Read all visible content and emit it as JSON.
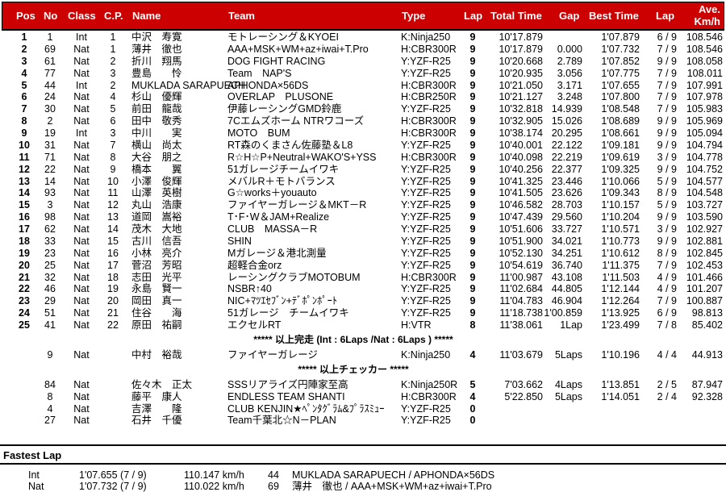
{
  "header": {
    "pos": "Pos",
    "no": "No",
    "class": "Class",
    "cp": "C.P.",
    "name": "Name",
    "team": "Team",
    "type": "Type",
    "lap": "Lap",
    "total": "Total Time",
    "gap": "Gap",
    "best": "Best Time",
    "bestlap": "Lap",
    "ave1": "Ave.",
    "ave2": "Km/h"
  },
  "colors": {
    "header_bg": "#cc0000",
    "header_text": "#ffffff"
  },
  "results": [
    {
      "pos": "1",
      "no": "1",
      "class": "Int",
      "cp": "1",
      "name": "中沢　寿寛",
      "team": "モトレーシング＆KYOEI",
      "type": "K:Ninja250",
      "lap": "9",
      "total": "10'17.879",
      "gap": "",
      "best": "1'07.879",
      "bestlap": "6 / 9",
      "ave": "108.546"
    },
    {
      "pos": "2",
      "no": "69",
      "class": "Nat",
      "cp": "1",
      "name": "薄井　徹也",
      "team": "AAA+MSK+WM+az+iwai+T.Pro",
      "type": "H:CBR300R",
      "lap": "9",
      "total": "10'17.879",
      "gap": "0.000",
      "best": "1'07.732",
      "bestlap": "7 / 9",
      "ave": "108.546"
    },
    {
      "pos": "3",
      "no": "61",
      "class": "Nat",
      "cp": "2",
      "name": "折川　翔馬",
      "team": "DOG FIGHT RACING",
      "type": "Y:YZF-R25",
      "lap": "9",
      "total": "10'20.668",
      "gap": "2.789",
      "best": "1'07.852",
      "bestlap": "9 / 9",
      "ave": "108.058"
    },
    {
      "pos": "4",
      "no": "77",
      "class": "Nat",
      "cp": "3",
      "name": "豊島　　怜",
      "team": "Team　NAP'S",
      "type": "Y:YZF-R25",
      "lap": "9",
      "total": "10'20.935",
      "gap": "3.056",
      "best": "1'07.775",
      "bestlap": "7 / 9",
      "ave": "108.011"
    },
    {
      "pos": "5",
      "no": "44",
      "class": "Int",
      "cp": "2",
      "name": "MUKLADA SARAPUECH",
      "team": "APHONDA×56DS",
      "type": "H:CBR300R",
      "lap": "9",
      "total": "10'21.050",
      "gap": "3.171",
      "best": "1'07.655",
      "bestlap": "7 / 9",
      "ave": "107.991"
    },
    {
      "pos": "6",
      "no": "24",
      "class": "Nat",
      "cp": "4",
      "name": "杉山　優輝",
      "team": "OVERLAP　PLUSONE",
      "type": "H:CBR250R",
      "lap": "9",
      "total": "10'21.127",
      "gap": "3.248",
      "best": "1'07.800",
      "bestlap": "7 / 9",
      "ave": "107.978"
    },
    {
      "pos": "7",
      "no": "30",
      "class": "Nat",
      "cp": "5",
      "name": "前田　龍哉",
      "team": "伊藤レーシングGMD鈴鹿",
      "type": "Y:YZF-R25",
      "lap": "9",
      "total": "10'32.818",
      "gap": "14.939",
      "best": "1'08.548",
      "bestlap": "7 / 9",
      "ave": "105.983"
    },
    {
      "pos": "8",
      "no": "2",
      "class": "Nat",
      "cp": "6",
      "name": "田中　敬秀",
      "team": "7Cエムズホーム NTRワコーズ",
      "type": "H:CBR300R",
      "lap": "9",
      "total": "10'32.905",
      "gap": "15.026",
      "best": "1'08.689",
      "bestlap": "9 / 9",
      "ave": "105.969"
    },
    {
      "pos": "9",
      "no": "19",
      "class": "Int",
      "cp": "3",
      "name": "中川　　実",
      "team": "MOTO　BUM",
      "type": "H:CBR300R",
      "lap": "9",
      "total": "10'38.174",
      "gap": "20.295",
      "best": "1'08.661",
      "bestlap": "9 / 9",
      "ave": "105.094"
    },
    {
      "pos": "10",
      "no": "31",
      "class": "Nat",
      "cp": "7",
      "name": "横山　尚太",
      "team": "RT森のくまさん佐藤塾＆L8",
      "type": "Y:YZF-R25",
      "lap": "9",
      "total": "10'40.001",
      "gap": "22.122",
      "best": "1'09.181",
      "bestlap": "9 / 9",
      "ave": "104.794"
    },
    {
      "pos": "11",
      "no": "71",
      "class": "Nat",
      "cp": "8",
      "name": "大谷　朋之",
      "team": "R☆H☆P+Neutral+WAKO'S+YSS",
      "type": "H:CBR300R",
      "lap": "9",
      "total": "10'40.098",
      "gap": "22.219",
      "best": "1'09.619",
      "bestlap": "3 / 9",
      "ave": "104.778"
    },
    {
      "pos": "12",
      "no": "22",
      "class": "Nat",
      "cp": "9",
      "name": "橋本　　翼",
      "team": "51ガレージチームイワキ",
      "type": "Y:YZF-R25",
      "lap": "9",
      "total": "10'40.256",
      "gap": "22.377",
      "best": "1'09.325",
      "bestlap": "9 / 9",
      "ave": "104.752"
    },
    {
      "pos": "13",
      "no": "14",
      "class": "Nat",
      "cp": "10",
      "name": "小澤　俊輝",
      "team": "メバルR＋モトバランス",
      "type": "Y:YZF-R25",
      "lap": "9",
      "total": "10'41.325",
      "gap": "23.446",
      "best": "1'10.066",
      "bestlap": "5 / 9",
      "ave": "104.577"
    },
    {
      "pos": "14",
      "no": "93",
      "class": "Nat",
      "cp": "11",
      "name": "山澤　英樹",
      "team": "G☆works＋youauto",
      "type": "Y:YZF-R25",
      "lap": "9",
      "total": "10'41.505",
      "gap": "23.626",
      "best": "1'09.343",
      "bestlap": "8 / 9",
      "ave": "104.548"
    },
    {
      "pos": "15",
      "no": "3",
      "class": "Nat",
      "cp": "12",
      "name": "丸山　浩康",
      "team": "ファイヤーガレージ＆MKT－R",
      "type": "Y:YZF-R25",
      "lap": "9",
      "total": "10'46.582",
      "gap": "28.703",
      "best": "1'10.157",
      "bestlap": "5 / 9",
      "ave": "103.727"
    },
    {
      "pos": "16",
      "no": "98",
      "class": "Nat",
      "cp": "13",
      "name": "道岡　嵩裕",
      "team": "T･F･W＆JAM+Realize",
      "type": "Y:YZF-R25",
      "lap": "9",
      "total": "10'47.439",
      "gap": "29.560",
      "best": "1'10.204",
      "bestlap": "9 / 9",
      "ave": "103.590"
    },
    {
      "pos": "17",
      "no": "62",
      "class": "Nat",
      "cp": "14",
      "name": "茂木　大地",
      "team": "CLUB　MASSA－R",
      "type": "Y:YZF-R25",
      "lap": "9",
      "total": "10'51.606",
      "gap": "33.727",
      "best": "1'10.571",
      "bestlap": "3 / 9",
      "ave": "102.927"
    },
    {
      "pos": "18",
      "no": "33",
      "class": "Nat",
      "cp": "15",
      "name": "古川　信吾",
      "team": "SHIN",
      "type": "Y:YZF-R25",
      "lap": "9",
      "total": "10'51.900",
      "gap": "34.021",
      "best": "1'10.773",
      "bestlap": "9 / 9",
      "ave": "102.881"
    },
    {
      "pos": "19",
      "no": "23",
      "class": "Nat",
      "cp": "16",
      "name": "小林　亮介",
      "team": "Mガレージ＆港北測量",
      "type": "Y:YZF-R25",
      "lap": "9",
      "total": "10'52.130",
      "gap": "34.251",
      "best": "1'10.612",
      "bestlap": "8 / 9",
      "ave": "102.845"
    },
    {
      "pos": "20",
      "no": "25",
      "class": "Nat",
      "cp": "17",
      "name": "菅沼　芳昭",
      "team": "超軽合金orz",
      "type": "Y:YZF-R25",
      "lap": "9",
      "total": "10'54.619",
      "gap": "36.740",
      "best": "1'11.375",
      "bestlap": "7 / 9",
      "ave": "102.453"
    },
    {
      "pos": "21",
      "no": "32",
      "class": "Nat",
      "cp": "18",
      "name": "志田　光平",
      "team": "レーシングクラブMOTOBUM",
      "type": "H:CBR300R",
      "lap": "9",
      "total": "11'00.987",
      "gap": "43.108",
      "best": "1'11.503",
      "bestlap": "4 / 9",
      "ave": "101.466"
    },
    {
      "pos": "22",
      "no": "46",
      "class": "Nat",
      "cp": "19",
      "name": "永島　賢一",
      "team": "NSBR↑40",
      "type": "Y:YZF-R25",
      "lap": "9",
      "total": "11'02.684",
      "gap": "44.805",
      "best": "1'12.144",
      "bestlap": "4 / 9",
      "ave": "101.207"
    },
    {
      "pos": "23",
      "no": "29",
      "class": "Nat",
      "cp": "20",
      "name": "岡田　真一",
      "team": "NIC+ﾏﾂｴｾﾌﾞﾝ+ﾃﾞﾎﾟﾝﾎﾟｰﾄ",
      "type": "Y:YZF-R25",
      "lap": "9",
      "total": "11'04.783",
      "gap": "46.904",
      "best": "1'12.264",
      "bestlap": "7 / 9",
      "ave": "100.887"
    },
    {
      "pos": "24",
      "no": "51",
      "class": "Nat",
      "cp": "21",
      "name": "住谷　　海",
      "team": "51ガレージ　チームイワキ",
      "type": "Y:YZF-R25",
      "lap": "9",
      "total": "11'18.738",
      "gap": "1'00.859",
      "best": "1'13.925",
      "bestlap": "6 / 9",
      "ave": "98.813"
    },
    {
      "pos": "25",
      "no": "41",
      "class": "Nat",
      "cp": "22",
      "name": "原田　祐嗣",
      "team": "エクセルRT",
      "type": "H:VTR",
      "lap": "8",
      "total": "11'38.061",
      "gap": "1Lap",
      "best": "1'23.499",
      "bestlap": "7 / 8",
      "ave": "85.402"
    }
  ],
  "finish_note": "***** 以上完走 (Int : 6Laps /Nat : 6Laps ) *****",
  "not_classified": [
    {
      "pos": "",
      "no": "9",
      "class": "Nat",
      "cp": "",
      "name": "中村　裕哉",
      "team": "ファイヤーガレージ",
      "type": "K:Ninja250",
      "lap": "4",
      "total": "11'03.679",
      "gap": "5Laps",
      "best": "1'10.196",
      "bestlap": "4 / 4",
      "ave": "44.913"
    }
  ],
  "checker_note": "***** 以上チェッカー *****",
  "retired": [
    {
      "pos": "",
      "no": "84",
      "class": "Nat",
      "cp": "",
      "name": "佐々木　正太",
      "team": "SSSリアライズ円陣家至高",
      "type": "K:Ninja250R",
      "lap": "5",
      "total": "7'03.662",
      "gap": "4Laps",
      "best": "1'13.851",
      "bestlap": "2 / 5",
      "ave": "87.947"
    },
    {
      "pos": "",
      "no": "8",
      "class": "Nat",
      "cp": "",
      "name": "藤平　康人",
      "team": "ENDLESS TEAM SHANTI",
      "type": "H:CBR300R",
      "lap": "4",
      "total": "5'22.850",
      "gap": "5Laps",
      "best": "1'14.051",
      "bestlap": "2 / 4",
      "ave": "92.328"
    },
    {
      "pos": "",
      "no": "4",
      "class": "Nat",
      "cp": "",
      "name": "吉澤　　隆",
      "team": "CLUB KENJIN★ﾍﾟﾝﾀｸﾞﾗﾑ&ﾌﾟﾗｽﾐｭｰ",
      "type": "Y:YZF-R25",
      "lap": "0",
      "total": "",
      "gap": "",
      "best": "",
      "bestlap": "",
      "ave": ""
    },
    {
      "pos": "",
      "no": "27",
      "class": "Nat",
      "cp": "",
      "name": "石井　千優",
      "team": "Team千葉北☆N－PLAN",
      "type": "Y:YZF-R25",
      "lap": "0",
      "total": "",
      "gap": "",
      "best": "",
      "bestlap": "",
      "ave": ""
    }
  ],
  "fastest_lap": {
    "title": "Fastest Lap",
    "rows": [
      {
        "class": "Int",
        "time": "1'07.655 (7 / 9)",
        "speed": "110.147 km/h",
        "no": "44",
        "rider": "MUKLADA SARAPUECH / APHONDA×56DS"
      },
      {
        "class": "Nat",
        "time": "1'07.732 (7 / 9)",
        "speed": "110.022 km/h",
        "no": "69",
        "rider": "薄井　徹也 / AAA+MSK+WM+az+iwai+T.Pro"
      }
    ]
  }
}
